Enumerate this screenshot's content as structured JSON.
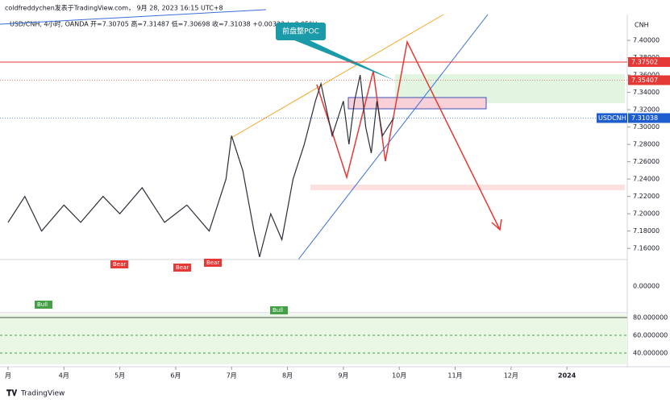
{
  "header": {
    "author_line": "coldfreddychen发表于TradingView.com， 9月 28, 2023 16:15 UTC+8",
    "symbol_line": "USD/CNH, 4小时, OANDA",
    "ohlc": "开=7.30705 高=7.31487 低=7.30698 收=7.31038 +0.00333 (+0.05%)"
  },
  "annotation": "前盘整POC",
  "footer": "TradingView",
  "chart_data": {
    "type": "line",
    "currency": "CNH",
    "x": [
      3.0,
      3.3,
      3.6,
      4.0,
      4.3,
      4.7,
      5.0,
      5.4,
      5.8,
      6.2,
      6.6,
      6.9,
      7.0,
      7.2,
      7.4,
      7.5,
      7.7,
      7.9,
      8.1,
      8.3,
      8.5,
      8.6,
      8.8,
      9.0,
      9.1,
      9.2,
      9.3,
      9.4,
      9.5,
      9.6,
      9.7,
      9.9
    ],
    "series": [
      {
        "name": "USDCNH",
        "color": "#2a2e39",
        "values": [
          7.19,
          7.22,
          7.18,
          7.21,
          7.19,
          7.22,
          7.2,
          7.23,
          7.19,
          7.21,
          7.18,
          7.24,
          7.29,
          7.25,
          7.18,
          7.15,
          7.2,
          7.17,
          7.24,
          7.28,
          7.33,
          7.35,
          7.29,
          7.33,
          7.28,
          7.33,
          7.36,
          7.3,
          7.27,
          7.33,
          7.29,
          7.31038
        ]
      }
    ],
    "xlim": [
      2.856,
      14.08
    ],
    "xticks": [
      {
        "value": 3,
        "label": "月"
      },
      {
        "value": 4,
        "label": "4月"
      },
      {
        "value": 5,
        "label": "5月"
      },
      {
        "value": 6,
        "label": "6月"
      },
      {
        "value": 7,
        "label": "7月"
      },
      {
        "value": 8,
        "label": "8月"
      },
      {
        "value": 9,
        "label": "9月"
      },
      {
        "value": 10,
        "label": "10月"
      },
      {
        "value": 11,
        "label": "11月"
      },
      {
        "value": 12,
        "label": "12月"
      },
      {
        "value": 13,
        "label": "2024"
      }
    ],
    "ylim": [
      7.149,
      7.428
    ],
    "yticks": [
      {
        "value": 7.4,
        "label": "7.40000"
      },
      {
        "value": 7.38,
        "label": "7.38000"
      },
      {
        "value": 7.36,
        "label": "7.36000"
      },
      {
        "value": 7.34,
        "label": "7.34000"
      },
      {
        "value": 7.32,
        "label": "7.32000"
      },
      {
        "value": 7.3,
        "label": "7.30000"
      },
      {
        "value": 7.28,
        "label": "7.28000"
      },
      {
        "value": 7.26,
        "label": "7.26000"
      },
      {
        "value": 7.24,
        "label": "7.24000"
      },
      {
        "value": 7.22,
        "label": "7.22000"
      },
      {
        "value": 7.2,
        "label": "7.20000"
      },
      {
        "value": 7.18,
        "label": "7.18000"
      },
      {
        "value": 7.16,
        "label": "7.16000"
      }
    ],
    "price_tags": [
      {
        "value": 7.37502,
        "color": "#e53935"
      },
      {
        "value": 7.35407,
        "color": "#e53935"
      },
      {
        "name": "USDCNH",
        "value": 7.31038,
        "color": "#1e5dcf"
      }
    ]
  },
  "panels": {
    "oscillator": {
      "ylim": [
        -0.05,
        0.05
      ],
      "yticks": [
        {
          "value": 0,
          "label": "0.00000"
        }
      ],
      "labels": [
        "Bear",
        "Bear",
        "Bear",
        "Bull",
        "Bull"
      ]
    },
    "rsi": {
      "ylim": [
        27.3,
        83.6
      ],
      "yticks": [
        {
          "value": 80,
          "label": "80.000000"
        },
        {
          "value": 60,
          "label": "60.000000"
        },
        {
          "value": 40,
          "label": "40.000000"
        }
      ]
    }
  }
}
